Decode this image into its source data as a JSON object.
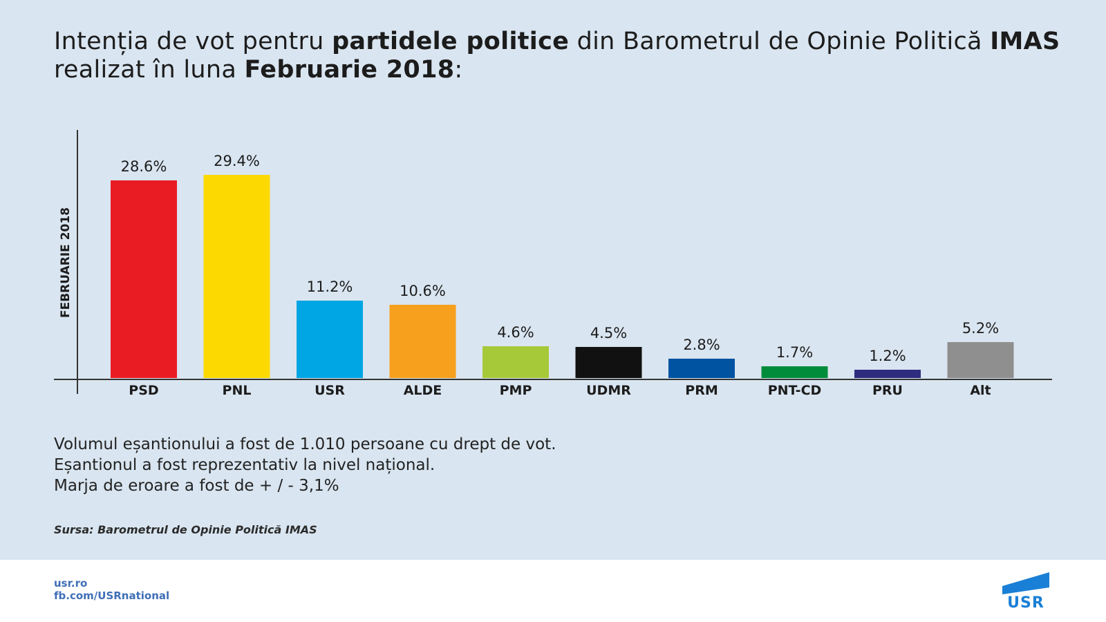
{
  "title": {
    "t1": "Intenția de vot pentru ",
    "t2": "partidele politice",
    "t3": " din Barometrul de Opinie Politică ",
    "t4": "IMAS",
    "t5": " realizat în luna ",
    "t6": "Februarie 2018",
    "t7": ":"
  },
  "chart_data": {
    "type": "bar",
    "title": "Intenția de vot pentru partidele politice din Barometrul de Opinie Politică IMAS realizat în luna Februarie 2018:",
    "ylabel": "FEBRUARIE 2018",
    "xlabel": "",
    "ylim": [
      0,
      30
    ],
    "grid": false,
    "categories": [
      "PSD",
      "PNL",
      "USR",
      "ALDE",
      "PMP",
      "UDMR",
      "PRM",
      "PNT-CD",
      "PRU",
      "Alt"
    ],
    "values": [
      28.6,
      29.4,
      11.2,
      10.6,
      4.6,
      4.5,
      2.8,
      1.7,
      1.2,
      5.2
    ],
    "value_labels": [
      "28.6%",
      "29.4%",
      "11.2%",
      "10.6%",
      "4.6%",
      "4.5%",
      "2.8%",
      "1.7%",
      "1.2%",
      "5.2%"
    ],
    "colors": [
      "#e91c24",
      "#fcd900",
      "#00a5e3",
      "#f7a01d",
      "#a6c93a",
      "#111111",
      "#0053a0",
      "#008c3a",
      "#2e2c7e",
      "#8f8f8f"
    ]
  },
  "notes": {
    "line1": "Volumul eșantionului a fost de 1.010 persoane cu drept de vot.",
    "line2": "Eșantionul a fost reprezentativ la nivel național.",
    "line3": "Marja de eroare a fost de + / - 3,1%"
  },
  "source": "Sursa: Barometrul de Opinie Politică IMAS",
  "footer": {
    "link1": "usr.ro",
    "link2": "fb.com/USRnational",
    "logo_text": "USR",
    "logo_color": "#1a7fd6"
  }
}
